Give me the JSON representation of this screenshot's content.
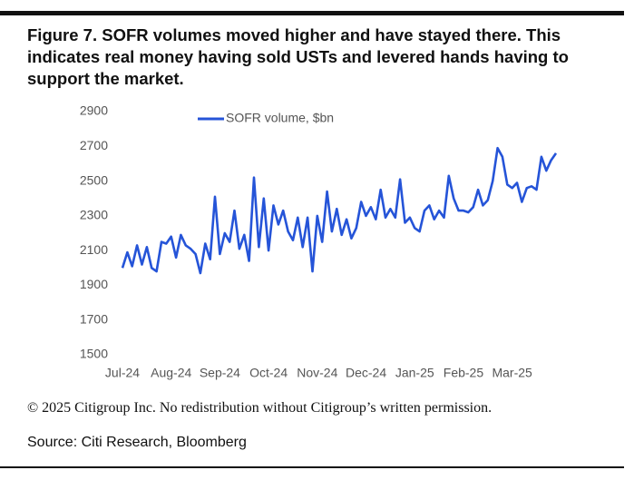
{
  "chart_data": {
    "type": "line",
    "title": "Figure 7. SOFR volumes moved higher and have stayed there. This indicates real money having sold USTs and levered hands having to support the market.",
    "copyright": "© 2025 Citigroup Inc. No redistribution without Citigroup’s written permission.",
    "source": "Source: Citi Research, Bloomberg",
    "categories": [
      "Jul-24",
      null,
      null,
      null,
      null,
      null,
      null,
      null,
      null,
      null,
      "Aug-24",
      null,
      null,
      null,
      null,
      null,
      null,
      null,
      null,
      null,
      "Sep-24",
      null,
      null,
      null,
      null,
      null,
      null,
      null,
      null,
      null,
      "Oct-24",
      null,
      null,
      null,
      null,
      null,
      null,
      null,
      null,
      null,
      "Nov-24",
      null,
      null,
      null,
      null,
      null,
      null,
      null,
      null,
      null,
      "Dec-24",
      null,
      null,
      null,
      null,
      null,
      null,
      null,
      null,
      null,
      "Jan-25",
      null,
      null,
      null,
      null,
      null,
      null,
      null,
      null,
      null,
      "Feb-25",
      null,
      null,
      null,
      null,
      null,
      null,
      null,
      null,
      null,
      "Mar-25",
      null,
      null,
      null,
      null,
      null,
      null,
      null,
      null,
      null
    ],
    "series": [
      {
        "name": "SOFR volume, $bn",
        "color": "#2554d8",
        "values": [
          2000,
          2090,
          2010,
          2130,
          2020,
          2120,
          2000,
          1980,
          2150,
          2140,
          2180,
          2060,
          2190,
          2130,
          2110,
          2080,
          1970,
          2140,
          2050,
          2410,
          2080,
          2200,
          2150,
          2330,
          2110,
          2190,
          2040,
          2520,
          2120,
          2400,
          2100,
          2360,
          2250,
          2330,
          2210,
          2160,
          2290,
          2120,
          2290,
          1980,
          2300,
          2150,
          2440,
          2210,
          2340,
          2190,
          2280,
          2170,
          2230,
          2380,
          2300,
          2350,
          2280,
          2450,
          2290,
          2340,
          2290,
          2510,
          2260,
          2290,
          2230,
          2210,
          2330,
          2360,
          2280,
          2330,
          2290,
          2530,
          2400,
          2330,
          2330,
          2320,
          2350,
          2450,
          2360,
          2390,
          2500,
          2690,
          2640,
          2480,
          2460,
          2490,
          2380,
          2460,
          2470,
          2450,
          2640,
          2560,
          2620,
          2660
        ]
      }
    ],
    "ylim": [
      1500,
      2900
    ],
    "yticks": [
      1500,
      1700,
      1900,
      2100,
      2300,
      2500,
      2700,
      2900
    ],
    "legend": "top"
  }
}
